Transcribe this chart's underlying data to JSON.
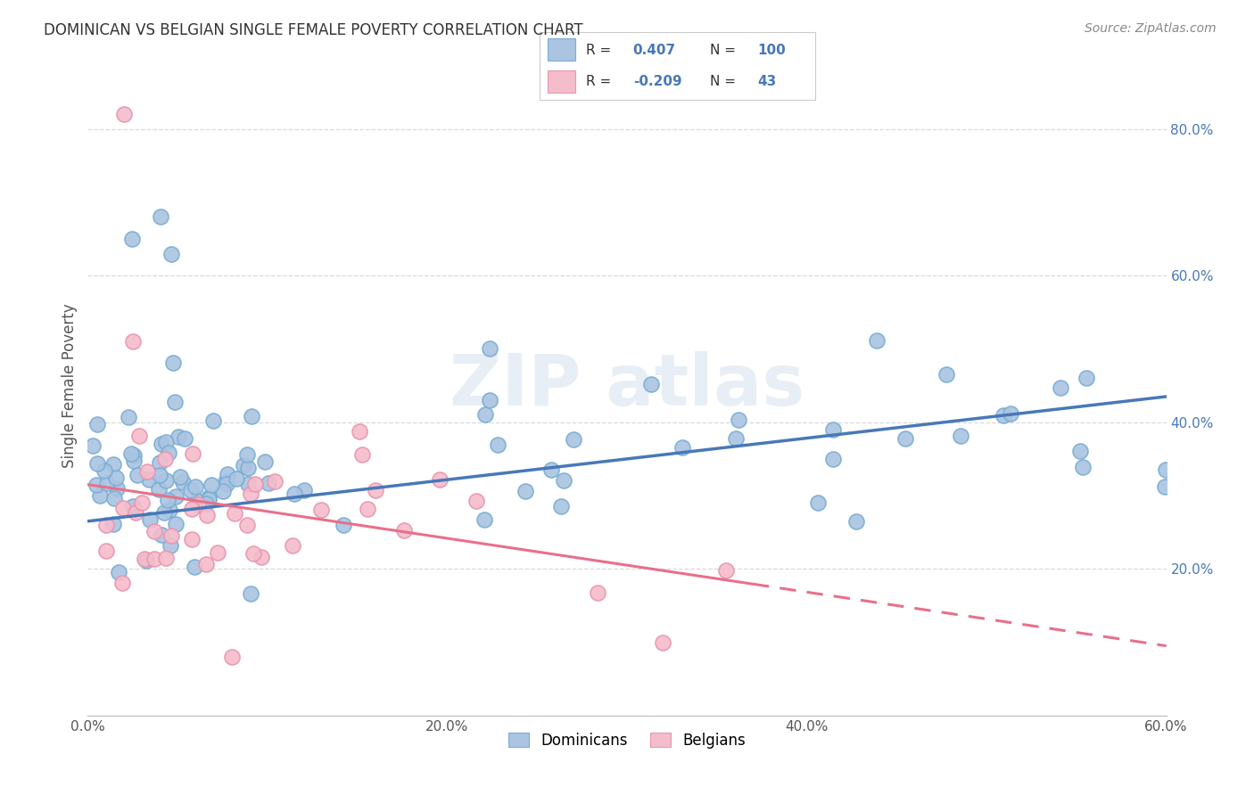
{
  "title": "DOMINICAN VS BELGIAN SINGLE FEMALE POVERTY CORRELATION CHART",
  "source": "Source: ZipAtlas.com",
  "ylabel": "Single Female Poverty",
  "xlim": [
    0.0,
    0.6
  ],
  "ylim": [
    0.0,
    0.9
  ],
  "xtick_labels": [
    "0.0%",
    "20.0%",
    "40.0%",
    "60.0%"
  ],
  "xtick_vals": [
    0.0,
    0.2,
    0.4,
    0.6
  ],
  "ytick_labels": [
    "20.0%",
    "40.0%",
    "60.0%",
    "80.0%"
  ],
  "ytick_vals": [
    0.2,
    0.4,
    0.6,
    0.8
  ],
  "dominican_color": "#aac4e2",
  "dominican_edge": "#7aaed4",
  "belgian_color": "#f5bccb",
  "belgian_edge": "#e896b0",
  "dominican_R": 0.407,
  "dominican_N": 100,
  "belgian_R": -0.209,
  "belgian_N": 43,
  "dominican_line_color": "#4878b8",
  "belgian_line_color": "#e8708a",
  "legend_text_color": "#4878b8",
  "legend_label_color": "#333333",
  "watermark_color": "#e8eef5",
  "background_color": "#ffffff",
  "grid_color": "#d8d8d8",
  "dom_line_start_y": 0.265,
  "dom_line_end_y": 0.435,
  "bel_line_start_y": 0.315,
  "bel_line_end_y": 0.095
}
